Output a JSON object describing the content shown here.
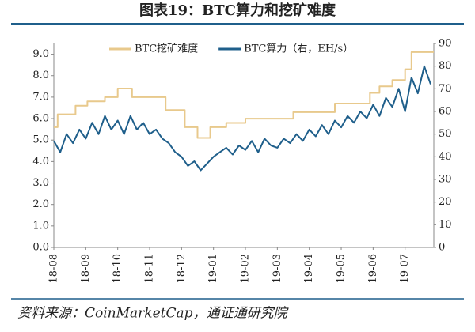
{
  "chart_data": {
    "type": "line",
    "title": "图表19：BTC算力和挖矿难度",
    "source": "资料来源：CoinMarketCap，通证通研究院",
    "legend": "top",
    "xlim": [
      0,
      11.9
    ],
    "xticks": [
      {
        "value": 0,
        "label": "18-08"
      },
      {
        "value": 1,
        "label": "18-09"
      },
      {
        "value": 2,
        "label": "18-10"
      },
      {
        "value": 3,
        "label": "18-11"
      },
      {
        "value": 4,
        "label": "18-12"
      },
      {
        "value": 5,
        "label": "19-01"
      },
      {
        "value": 6,
        "label": "19-02"
      },
      {
        "value": 7,
        "label": "19-03"
      },
      {
        "value": 8,
        "label": "19-04"
      },
      {
        "value": 9,
        "label": "19-05"
      },
      {
        "value": 10,
        "label": "19-06"
      },
      {
        "value": 11,
        "label": "19-07"
      }
    ],
    "ylim": [
      0,
      9.5
    ],
    "yticks": [
      {
        "value": 0,
        "label": "0.0"
      },
      {
        "value": 1,
        "label": "1.0"
      },
      {
        "value": 2,
        "label": "2.0"
      },
      {
        "value": 3,
        "label": "3.0"
      },
      {
        "value": 4,
        "label": "4.0"
      },
      {
        "value": 5,
        "label": "5.0"
      },
      {
        "value": 6,
        "label": "6.0"
      },
      {
        "value": 7,
        "label": "7.0"
      },
      {
        "value": 8,
        "label": "8.0"
      },
      {
        "value": 9,
        "label": "9.0"
      }
    ],
    "y2lim": [
      0,
      90
    ],
    "y2ticks": [
      0,
      10,
      20,
      30,
      40,
      50,
      60,
      70,
      80,
      90
    ],
    "series": [
      {
        "name": "BTC挖矿难度",
        "color": "#e8c98c",
        "x": [
          0,
          0.12,
          0.12,
          0.68,
          0.68,
          1.05,
          1.05,
          1.6,
          1.6,
          2.0,
          2.0,
          2.45,
          2.45,
          3.5,
          3.5,
          4.1,
          4.1,
          4.5,
          4.5,
          4.9,
          4.9,
          5.4,
          5.4,
          6.0,
          6.0,
          7.5,
          7.5,
          8.8,
          8.8,
          9.9,
          9.9,
          10.2,
          10.2,
          10.6,
          10.6,
          11.0,
          11.0,
          11.2,
          11.2,
          11.9
        ],
        "values": [
          5.6,
          5.6,
          6.2,
          6.2,
          6.6,
          6.6,
          6.8,
          6.8,
          7.0,
          7.0,
          7.4,
          7.4,
          7.0,
          7.0,
          6.4,
          6.4,
          5.6,
          5.6,
          5.1,
          5.1,
          5.6,
          5.6,
          5.8,
          5.8,
          6.0,
          6.0,
          6.3,
          6.3,
          6.7,
          6.7,
          7.2,
          7.2,
          7.5,
          7.5,
          7.8,
          7.8,
          8.3,
          8.3,
          9.1,
          9.1
        ]
      },
      {
        "name": "BTC算力（右，EH/s）",
        "color": "#1f5f8b",
        "axis": "y2",
        "x": [
          0,
          0.2,
          0.4,
          0.6,
          0.8,
          1.0,
          1.2,
          1.4,
          1.6,
          1.8,
          2.0,
          2.2,
          2.4,
          2.6,
          2.8,
          3.0,
          3.2,
          3.4,
          3.6,
          3.8,
          4.0,
          4.2,
          4.4,
          4.6,
          4.8,
          5.0,
          5.2,
          5.4,
          5.6,
          5.8,
          6.0,
          6.2,
          6.4,
          6.6,
          6.8,
          7.0,
          7.2,
          7.4,
          7.6,
          7.8,
          8.0,
          8.2,
          8.4,
          8.6,
          8.8,
          9.0,
          9.2,
          9.4,
          9.6,
          9.8,
          10.0,
          10.2,
          10.4,
          10.6,
          10.8,
          11.0,
          11.2,
          11.4,
          11.6,
          11.8
        ],
        "values": [
          47,
          42,
          50,
          46,
          52,
          48,
          55,
          50,
          58,
          52,
          56,
          50,
          58,
          52,
          55,
          50,
          52,
          48,
          46,
          42,
          40,
          36,
          38,
          34,
          37,
          40,
          42,
          44,
          41,
          45,
          43,
          47,
          42,
          48,
          45,
          44,
          48,
          46,
          50,
          47,
          52,
          49,
          54,
          50,
          56,
          53,
          58,
          55,
          60,
          57,
          63,
          58,
          66,
          62,
          70,
          60,
          75,
          68,
          80,
          72
        ]
      }
    ]
  }
}
